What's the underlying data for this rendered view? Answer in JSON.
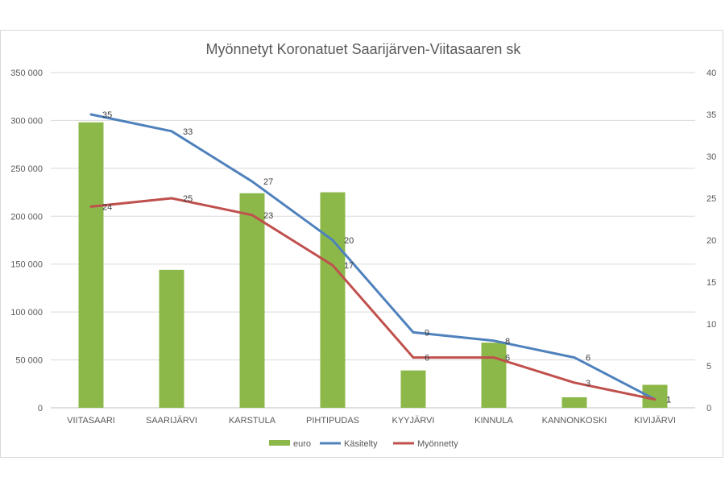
{
  "chart_data": {
    "type": "bar",
    "title": "Myönnetyt Koronatuet Saarijärven-Viitasaaren sk",
    "categories": [
      "VIITASAARI",
      "SAARIJÄRVI",
      "KARSTULA",
      "PIHTIPUDAS",
      "KYYJÄRVI",
      "KINNULA",
      "KANNONKOSKI",
      "KIVIJÄRVI"
    ],
    "series": [
      {
        "name": "euro",
        "type": "bar",
        "axis": "left",
        "color": "#8cb849",
        "values": [
          298000,
          144000,
          224000,
          225000,
          39000,
          68000,
          11000,
          24000
        ]
      },
      {
        "name": "Käsitelty",
        "type": "line",
        "axis": "right",
        "color": "#4f81bd",
        "values": [
          35,
          33,
          27,
          20,
          9,
          8,
          6,
          1
        ]
      },
      {
        "name": "Myönnetty",
        "type": "line",
        "axis": "right",
        "color": "#c0504d",
        "values": [
          24,
          25,
          23,
          17,
          6,
          6,
          3,
          1
        ]
      }
    ],
    "y_left": {
      "min": 0,
      "max": 350000,
      "step": 50000,
      "tick_labels": [
        "0",
        "50 000",
        "100 000",
        "150 000",
        "200 000",
        "250 000",
        "300 000",
        "350 000"
      ]
    },
    "y_right": {
      "min": 0,
      "max": 40,
      "step": 5,
      "tick_labels": [
        "0",
        "5",
        "10",
        "15",
        "20",
        "25",
        "30",
        "35",
        "40"
      ]
    },
    "grid": true,
    "legend_position": "bottom"
  }
}
